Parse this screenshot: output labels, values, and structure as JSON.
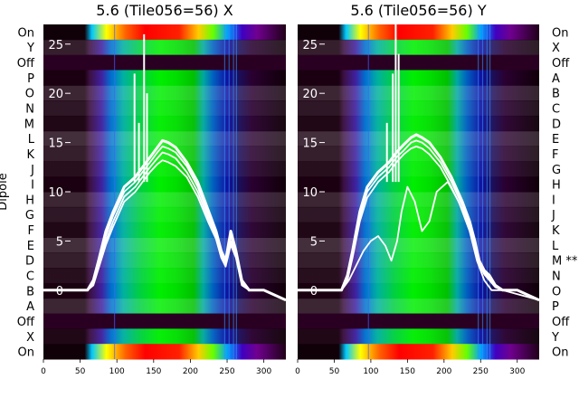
{
  "chart_data": [
    {
      "type": "heatmap",
      "title": "5.6 (Tile056=56) X",
      "ylabel": "Dipole",
      "xlim": [
        0,
        330
      ],
      "ylim": [
        -7,
        27
      ],
      "x_ticks": [
        0,
        50,
        100,
        150,
        200,
        250,
        300
      ],
      "y_ticks": [
        0,
        5,
        10,
        15,
        20,
        25
      ],
      "y_categories": [
        "On",
        "Y",
        "Off",
        "P",
        "O",
        "N",
        "M",
        "L",
        "K",
        "J",
        "I",
        "H",
        "G",
        "F",
        "E",
        "D",
        "C",
        "B",
        "A",
        "Off",
        "X",
        "On"
      ],
      "colormap": "nipy_spectral",
      "series": [
        {
          "x": [
            0,
            60,
            68,
            75,
            85,
            95,
            110,
            125,
            135,
            145,
            155,
            162,
            170,
            180,
            195,
            210,
            225,
            235,
            242,
            248,
            255,
            262,
            270,
            280,
            300,
            330
          ],
          "y": [
            0,
            0,
            1,
            3,
            6,
            8,
            10.5,
            11.5,
            12.5,
            13.5,
            14.5,
            15.2,
            15,
            14.5,
            13,
            11,
            8,
            6,
            4,
            3,
            6,
            4,
            1,
            0,
            0,
            -1
          ]
        },
        {
          "x": [
            0,
            60,
            68,
            75,
            85,
            95,
            110,
            125,
            135,
            145,
            155,
            162,
            170,
            180,
            195,
            210,
            225,
            235,
            242,
            248,
            255,
            262,
            270,
            280,
            300,
            330
          ],
          "y": [
            0,
            0,
            0.8,
            2.8,
            5.5,
            7.6,
            10,
            11,
            12,
            13,
            14,
            14.6,
            14.4,
            14,
            12.6,
            10.5,
            7.6,
            5.8,
            3.8,
            2.8,
            5.5,
            3.8,
            0.8,
            0,
            0,
            -1
          ]
        },
        {
          "x": [
            0,
            60,
            68,
            75,
            85,
            95,
            110,
            125,
            135,
            145,
            155,
            162,
            170,
            180,
            195,
            210,
            225,
            235,
            242,
            248,
            255,
            262,
            270,
            280,
            300,
            330
          ],
          "y": [
            0,
            0,
            0.6,
            2.5,
            5,
            7,
            9.5,
            10.5,
            11.5,
            12.5,
            13.4,
            14,
            13.8,
            13.4,
            12,
            10,
            7.2,
            5.5,
            3.5,
            2.6,
            5,
            3.5,
            0.6,
            0,
            0,
            -1
          ]
        },
        {
          "x": [
            0,
            60,
            68,
            75,
            85,
            95,
            110,
            125,
            135,
            145,
            155,
            162,
            170,
            180,
            195,
            210,
            225,
            235,
            242,
            248,
            255,
            262,
            270,
            280,
            300,
            330
          ],
          "y": [
            0,
            0,
            0.5,
            2.2,
            4.6,
            6.5,
            9,
            10,
            11,
            12,
            12.8,
            13.2,
            13,
            12.6,
            11.5,
            9.5,
            6.8,
            5.2,
            3.3,
            2.4,
            4.6,
            3.3,
            0.5,
            0,
            0,
            -1
          ]
        }
      ],
      "spikes": [
        [
          124,
          22
        ],
        [
          130,
          17
        ],
        [
          137,
          26
        ],
        [
          141,
          20
        ]
      ]
    },
    {
      "type": "heatmap",
      "title": "5.6 (Tile056=56) Y",
      "xlim": [
        0,
        330
      ],
      "ylim": [
        -7,
        27
      ],
      "x_ticks": [
        0,
        50,
        100,
        150,
        200,
        250,
        300
      ],
      "y_ticks": [
        0,
        5,
        10,
        15,
        20,
        25
      ],
      "y_categories": [
        "On",
        "X",
        "Off",
        "A",
        "B",
        "C",
        "D",
        "E",
        "F",
        "G",
        "H",
        "I",
        "J",
        "K",
        "L",
        "M **",
        "N",
        "O",
        "P",
        "Off",
        "Y",
        "On"
      ],
      "colormap": "nipy_spectral",
      "series": [
        {
          "x": [
            0,
            60,
            68,
            75,
            85,
            95,
            110,
            125,
            135,
            145,
            155,
            162,
            170,
            180,
            195,
            210,
            225,
            235,
            242,
            248,
            255,
            262,
            270,
            280,
            300,
            330
          ],
          "y": [
            0,
            0,
            1.5,
            4,
            8,
            10.5,
            12,
            13,
            14,
            14.8,
            15.5,
            15.8,
            15.5,
            15,
            13.5,
            11.5,
            9,
            7,
            5,
            3,
            2,
            1.5,
            0.5,
            0,
            0,
            -1
          ]
        },
        {
          "x": [
            0,
            60,
            68,
            75,
            85,
            95,
            110,
            125,
            135,
            145,
            155,
            162,
            170,
            180,
            195,
            210,
            225,
            235,
            242,
            248,
            255,
            262,
            270,
            280,
            300,
            330
          ],
          "y": [
            0,
            0,
            1.2,
            3.6,
            7.5,
            10,
            11.5,
            12.5,
            13.5,
            14.2,
            15,
            15.2,
            15,
            14.4,
            13,
            11,
            8.6,
            6.6,
            4.6,
            2.8,
            1.8,
            1.2,
            0.4,
            0,
            0,
            -1
          ]
        },
        {
          "x": [
            0,
            60,
            68,
            75,
            85,
            95,
            110,
            125,
            135,
            145,
            155,
            162,
            170,
            180,
            195,
            210,
            225,
            235,
            242,
            248,
            255,
            262,
            270,
            280,
            300,
            330
          ],
          "y": [
            0,
            0,
            1,
            3.3,
            7,
            9.4,
            11,
            12,
            13,
            13.8,
            14.4,
            14.6,
            14.4,
            13.8,
            12.5,
            10.5,
            8.2,
            6.2,
            4.3,
            2.6,
            1.6,
            1,
            0.3,
            0,
            0,
            -1
          ]
        },
        {
          "x": [
            0,
            60,
            70,
            80,
            90,
            100,
            110,
            120,
            128,
            136,
            142,
            150,
            160,
            170,
            180,
            190,
            205,
            220,
            235,
            245,
            255,
            265,
            280,
            330
          ],
          "y": [
            0,
            0,
            1,
            2.5,
            4,
            5,
            5.5,
            4.5,
            3,
            5,
            8,
            10.5,
            9,
            6,
            7,
            10,
            11,
            9,
            6,
            3,
            1,
            0,
            0,
            -1
          ]
        }
      ],
      "spikes": [
        [
          122,
          17
        ],
        [
          130,
          22
        ],
        [
          134,
          28
        ],
        [
          138,
          24
        ]
      ]
    }
  ]
}
